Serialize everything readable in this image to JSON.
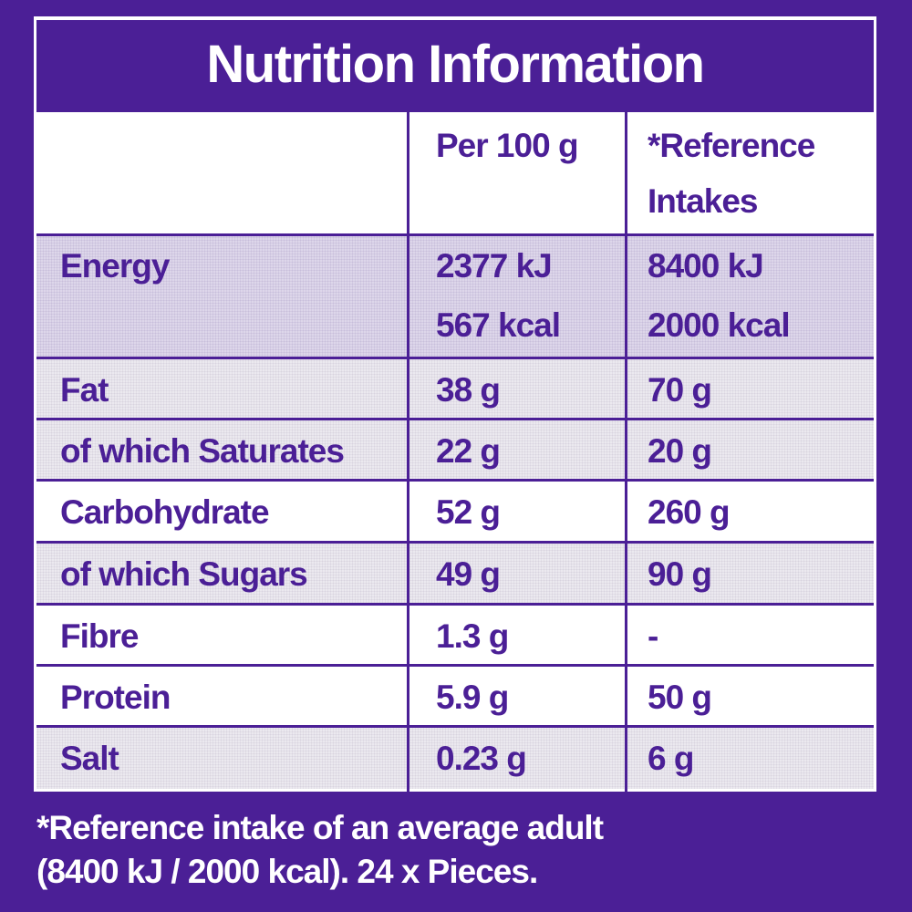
{
  "title": "Nutrition Information",
  "headers": {
    "per100": "Per 100 g",
    "reference_line1": "*Reference",
    "reference_line2": "Intakes"
  },
  "energy": {
    "label": "Energy",
    "per100_kj": "2377 kJ",
    "per100_kcal": "567 kcal",
    "ref_kj": "8400 kJ",
    "ref_kcal": "2000 kcal"
  },
  "rows": [
    {
      "label": "Fat",
      "per100": "38 g",
      "ref": "70 g"
    },
    {
      "label": "of which Saturates",
      "per100": "22 g",
      "ref": "20 g"
    },
    {
      "label": "Carbohydrate",
      "per100": "52 g",
      "ref": "260 g"
    },
    {
      "label": "of which Sugars",
      "per100": "49 g",
      "ref": "90 g"
    },
    {
      "label": "Fibre",
      "per100": "1.3 g",
      "ref": "-"
    },
    {
      "label": "Protein",
      "per100": "5.9 g",
      "ref": "50 g"
    },
    {
      "label": "Salt",
      "per100": "0.23 g",
      "ref": "6 g"
    }
  ],
  "footnote": {
    "line1": "*Reference intake of an average adult",
    "line2": "(8400 kJ / 2000 kcal). 24 x Pieces."
  },
  "colors": {
    "brand_purple": "#4b1f96",
    "background": "#ffffff"
  }
}
